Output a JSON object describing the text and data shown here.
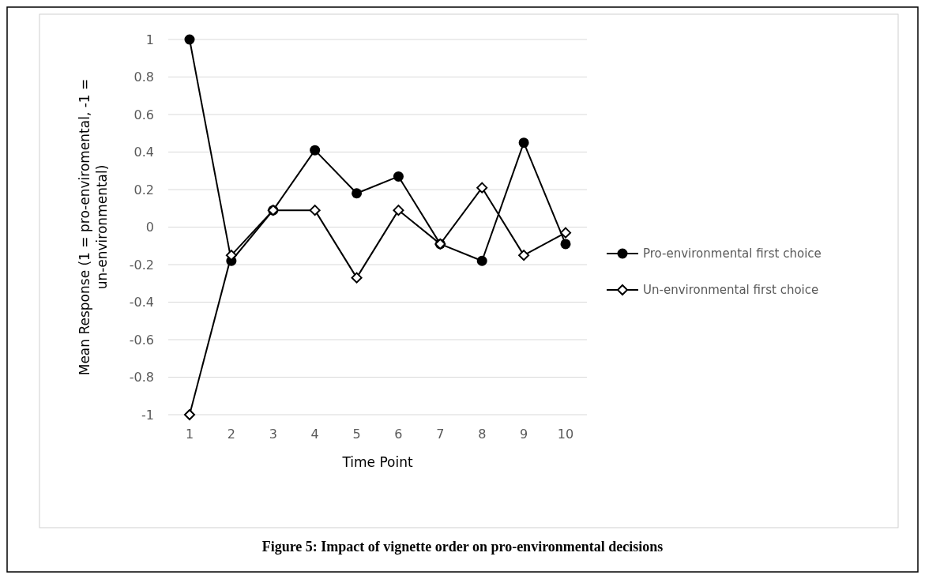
{
  "chart_data": {
    "type": "line",
    "title": "Figure 5: Impact of vignette order on pro-environmental decisions",
    "xlabel": "Time Point",
    "ylabel": "Mean Response (1 = pro-enviromental, -1 = un-environmental)",
    "categories": [
      "1",
      "2",
      "3",
      "4",
      "5",
      "6",
      "7",
      "8",
      "9",
      "10"
    ],
    "series": [
      {
        "name": "Pro-environmental first choice",
        "color": "#000000",
        "marker": "circle",
        "values": [
          1,
          -0.18,
          0.09,
          0.41,
          0.18,
          0.27,
          -0.09,
          -0.18,
          0.45,
          -0.09
        ]
      },
      {
        "name": "Un-environmental first choice",
        "color": "#000000",
        "marker": "diamond",
        "values": [
          -1,
          -0.15,
          0.09,
          0.09,
          -0.27,
          0.09,
          -0.09,
          0.21,
          -0.15,
          -0.03
        ]
      }
    ],
    "ylim": [
      -1,
      1
    ],
    "yticks": [
      -1,
      -0.8,
      -0.6,
      -0.4,
      -0.2,
      0,
      0.2,
      0.4,
      0.6,
      0.8,
      1
    ],
    "grid": "y",
    "legend": "right",
    "line_style": "solid"
  }
}
